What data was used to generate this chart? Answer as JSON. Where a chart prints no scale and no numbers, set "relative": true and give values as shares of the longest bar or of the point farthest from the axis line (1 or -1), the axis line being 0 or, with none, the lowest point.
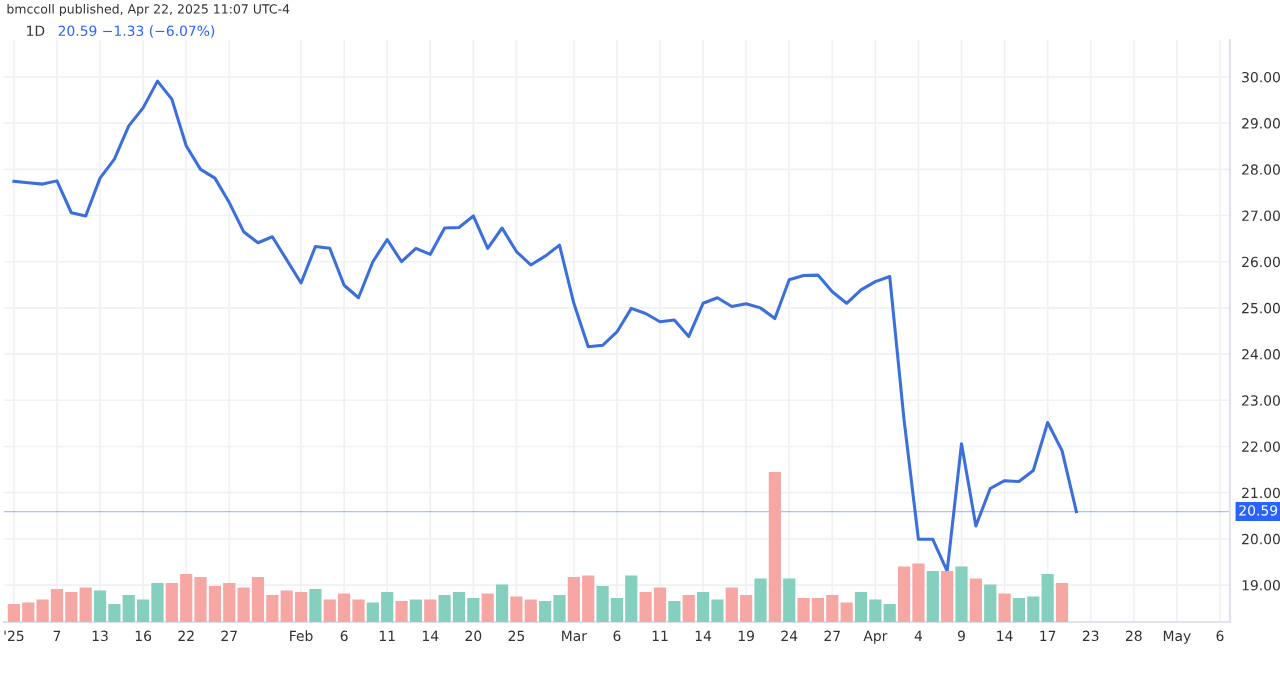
{
  "chart_data": [
    {
      "type": "line",
      "title": "1D",
      "subtitle": "20.59 −1.33 (−6.07%)",
      "annotations": [
        "bmccoll published, Apr 22, 2025 11:07 UTC-4"
      ],
      "categories": [
        "'25",
        null,
        null,
        "7",
        null,
        null,
        "13",
        null,
        null,
        "16",
        null,
        null,
        "22",
        null,
        null,
        "27",
        null,
        null,
        null,
        null,
        "Feb",
        null,
        null,
        "6",
        null,
        null,
        "11",
        null,
        null,
        "14",
        null,
        null,
        "20",
        null,
        null,
        "25",
        null,
        null,
        null,
        "Mar",
        null,
        null,
        "6",
        null,
        null,
        "11",
        null,
        null,
        "14",
        null,
        null,
        "19",
        null,
        null,
        "24",
        null,
        null,
        "27",
        null,
        null,
        "Apr",
        null,
        null,
        "4",
        null,
        null,
        "9",
        null,
        null,
        "14",
        null,
        null,
        "17",
        null,
        null,
        "23",
        null,
        null,
        "28",
        null,
        null,
        "May",
        null,
        null,
        "6"
      ],
      "series": [
        {
          "color": "#3b6fdc",
          "values": [
            27.74,
            27.71,
            27.68,
            27.75,
            27.06,
            26.99,
            27.81,
            28.22,
            28.94,
            29.33,
            29.91,
            29.52,
            28.51,
            28.0,
            27.81,
            27.28,
            26.65,
            26.41,
            26.54,
            26.04,
            25.54,
            26.33,
            26.29,
            25.49,
            25.22,
            26.0,
            26.48,
            26.0,
            26.29,
            26.16,
            26.73,
            26.74,
            26.99,
            26.29,
            26.73,
            26.22,
            25.93,
            26.12,
            26.36,
            25.1,
            24.16,
            24.19,
            24.48,
            24.99,
            24.88,
            24.7,
            24.74,
            24.38,
            25.1,
            25.22,
            25.03,
            25.09,
            25.0,
            24.77,
            25.61,
            25.7,
            25.71,
            25.35,
            25.1,
            25.39,
            25.57,
            25.68,
            22.57,
            19.99,
            19.99,
            19.3,
            22.06,
            20.28,
            21.09,
            21.26,
            21.24,
            21.48,
            22.52,
            21.91,
            20.59,
            null,
            null,
            null,
            null,
            null,
            null,
            null,
            null,
            null,
            null
          ]
        }
      ],
      "ylim": [
        18.2,
        30.8
      ],
      "yticks": [
        {
          "value": 19,
          "label": "19.00"
        },
        {
          "value": 20,
          "label": "20.00"
        },
        {
          "value": 21,
          "label": "21.00"
        },
        {
          "value": 22,
          "label": "22.00"
        },
        {
          "value": 23,
          "label": "23.00"
        },
        {
          "value": 24,
          "label": "24.00"
        },
        {
          "value": 25,
          "label": "25.00"
        },
        {
          "value": 26,
          "label": "26.00"
        },
        {
          "value": 27,
          "label": "27.00"
        },
        {
          "value": 28,
          "label": "28.00"
        },
        {
          "value": 29,
          "label": "29.00"
        },
        {
          "value": 30,
          "label": "30.00"
        }
      ],
      "ref_lines": [
        {
          "axis": "y",
          "value": 20.59,
          "label": "20.59",
          "color": "#2962ff"
        }
      ],
      "grid": true,
      "legend": false
    },
    {
      "type": "bar",
      "relative": true,
      "categories": [
        null,
        null,
        null,
        null,
        null,
        null,
        null,
        null,
        null,
        null,
        null,
        null,
        null,
        null,
        null,
        null,
        null,
        null,
        null,
        null,
        null,
        null,
        null,
        null,
        null,
        null,
        null,
        null,
        null,
        null,
        null,
        null,
        null,
        null,
        null,
        null,
        null,
        null,
        null,
        null,
        null,
        null,
        null,
        null,
        null,
        null,
        null,
        null,
        null,
        null,
        null,
        null,
        null,
        null,
        null,
        null,
        null,
        null,
        null,
        null,
        null,
        null,
        null,
        null,
        null,
        null,
        null,
        null,
        null,
        null,
        null,
        null,
        null,
        null,
        null,
        null,
        null,
        null,
        null,
        null,
        null,
        null,
        null,
        null,
        null
      ],
      "values": [
        0.12,
        0.13,
        0.15,
        0.22,
        0.2,
        0.23,
        0.21,
        0.12,
        0.18,
        0.15,
        0.26,
        0.26,
        0.32,
        0.3,
        0.24,
        0.26,
        0.23,
        0.3,
        0.18,
        0.21,
        0.2,
        0.22,
        0.15,
        0.19,
        0.15,
        0.13,
        0.2,
        0.14,
        0.15,
        0.15,
        0.18,
        0.2,
        0.16,
        0.19,
        0.25,
        0.17,
        0.15,
        0.14,
        0.18,
        0.3,
        0.31,
        0.24,
        0.16,
        0.31,
        0.2,
        0.23,
        0.14,
        0.18,
        0.2,
        0.15,
        0.23,
        0.18,
        0.29,
        1,
        0.29,
        0.16,
        0.16,
        0.18,
        0.13,
        0.2,
        0.15,
        0.12,
        0.37,
        0.39,
        0.34,
        0.34,
        0.37,
        0.29,
        0.25,
        0.19,
        0.16,
        0.17,
        0.32,
        0.26,
        null,
        null,
        null,
        null,
        null,
        null,
        null,
        null,
        null,
        null,
        null
      ],
      "colors": [
        "#f6a7a3",
        "#f6a7a3",
        "#f6a7a3",
        "#f6a7a3",
        "#f6a7a3",
        "#f6a7a3",
        "#85cfbf",
        "#85cfbf",
        "#85cfbf",
        "#85cfbf",
        "#85cfbf",
        "#f6a7a3",
        "#f6a7a3",
        "#f6a7a3",
        "#f6a7a3",
        "#f6a7a3",
        "#f6a7a3",
        "#f6a7a3",
        "#f6a7a3",
        "#f6a7a3",
        "#f6a7a3",
        "#85cfbf",
        "#f6a7a3",
        "#f6a7a3",
        "#f6a7a3",
        "#85cfbf",
        "#85cfbf",
        "#f6a7a3",
        "#85cfbf",
        "#f6a7a3",
        "#85cfbf",
        "#85cfbf",
        "#85cfbf",
        "#f6a7a3",
        "#85cfbf",
        "#f6a7a3",
        "#f6a7a3",
        "#85cfbf",
        "#85cfbf",
        "#f6a7a3",
        "#f6a7a3",
        "#85cfbf",
        "#85cfbf",
        "#85cfbf",
        "#f6a7a3",
        "#f6a7a3",
        "#85cfbf",
        "#f6a7a3",
        "#85cfbf",
        "#85cfbf",
        "#f6a7a3",
        "#f6a7a3",
        "#85cfbf",
        "#f6a7a3",
        "#85cfbf",
        "#f6a7a3",
        "#f6a7a3",
        "#f6a7a3",
        "#f6a7a3",
        "#85cfbf",
        "#85cfbf",
        "#85cfbf",
        "#f6a7a3",
        "#f6a7a3",
        "#85cfbf",
        "#f6a7a3",
        "#85cfbf",
        "#f6a7a3",
        "#85cfbf",
        "#f6a7a3",
        "#85cfbf",
        "#85cfbf",
        "#85cfbf",
        "#f6a7a3",
        "#f6a7a3",
        "#f6a7a3",
        "#f6a7a3",
        "#f6a7a3",
        "#f6a7a3",
        "#f6a7a3",
        "#f6a7a3",
        "#f6a7a3",
        "#f6a7a3",
        "#f6a7a3",
        "#f6a7a3"
      ]
    }
  ]
}
